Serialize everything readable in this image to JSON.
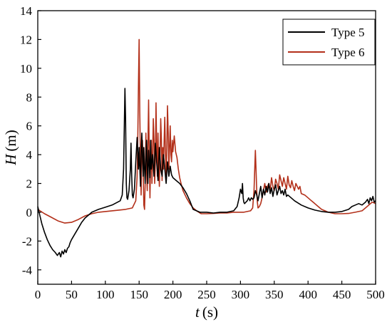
{
  "chart_data": {
    "type": "line",
    "title": "",
    "xlabel": "t (s)",
    "xlabel_var": "t",
    "xlabel_unit": "(s)",
    "ylabel": "H (m)",
    "ylabel_var": "H",
    "ylabel_unit": "(m)",
    "xlim": [
      0,
      500
    ],
    "ylim": [
      -5,
      14
    ],
    "xticks": [
      0,
      50,
      100,
      150,
      200,
      250,
      300,
      350,
      400,
      450,
      500
    ],
    "yticks": [
      -4,
      -2,
      0,
      2,
      4,
      6,
      8,
      10,
      12,
      14
    ],
    "grid": false,
    "legend_position": "top-right",
    "series": [
      {
        "name": "Type 5",
        "color": "#000000",
        "x": [
          0,
          3,
          6,
          10,
          14,
          18,
          22,
          26,
          29,
          32,
          34,
          36,
          38,
          40,
          42,
          44,
          46,
          48,
          50,
          55,
          60,
          65,
          70,
          75,
          80,
          90,
          100,
          110,
          118,
          122,
          125,
          127,
          129,
          130,
          131,
          132,
          133,
          135,
          137,
          138,
          139,
          140,
          141,
          143,
          145,
          147,
          149,
          150,
          151,
          152,
          153,
          154,
          155,
          156,
          157,
          158,
          159,
          160,
          161,
          162,
          163,
          164,
          165,
          166,
          167,
          168,
          170,
          172,
          174,
          176,
          178,
          180,
          182,
          184,
          186,
          188,
          190,
          192,
          194,
          196,
          198,
          200,
          205,
          210,
          215,
          220,
          225,
          230,
          240,
          250,
          260,
          270,
          280,
          290,
          295,
          298,
          300,
          302,
          303,
          304,
          305,
          306,
          308,
          310,
          312,
          314,
          316,
          318,
          320,
          322,
          324,
          326,
          328,
          330,
          332,
          334,
          336,
          338,
          340,
          342,
          344,
          346,
          348,
          350,
          352,
          354,
          356,
          358,
          360,
          362,
          364,
          366,
          368,
          370,
          375,
          380,
          390,
          400,
          410,
          420,
          430,
          440,
          450,
          460,
          465,
          470,
          475,
          480,
          485,
          488,
          490,
          492,
          494,
          496,
          498,
          500
        ],
        "y": [
          0.4,
          -0.2,
          -0.8,
          -1.4,
          -1.9,
          -2.3,
          -2.6,
          -2.8,
          -3.0,
          -2.8,
          -3.1,
          -2.7,
          -2.9,
          -2.6,
          -2.8,
          -2.5,
          -2.4,
          -2.1,
          -1.9,
          -1.5,
          -1.1,
          -0.7,
          -0.4,
          -0.2,
          0.0,
          0.2,
          0.35,
          0.5,
          0.7,
          0.8,
          1.2,
          3.0,
          8.6,
          6.5,
          2.0,
          1.0,
          0.9,
          1.5,
          3.0,
          4.8,
          2.5,
          1.2,
          1.0,
          1.6,
          3.5,
          5.2,
          3.0,
          4.5,
          3.2,
          1.8,
          4.0,
          5.5,
          4.0,
          2.5,
          4.5,
          3.0,
          2.0,
          3.8,
          5.0,
          3.0,
          2.0,
          4.3,
          3.5,
          2.4,
          5.0,
          3.0,
          4.0,
          2.5,
          4.8,
          3.5,
          2.2,
          4.5,
          3.0,
          2.5,
          4.0,
          3.0,
          2.0,
          3.5,
          2.5,
          3.2,
          2.6,
          2.4,
          2.2,
          2.0,
          1.7,
          1.3,
          0.8,
          0.2,
          0.0,
          0.0,
          -0.05,
          0.0,
          0.0,
          0.1,
          0.4,
          1.0,
          1.6,
          1.3,
          2.0,
          1.0,
          0.7,
          0.6,
          0.7,
          0.8,
          1.0,
          0.8,
          1.0,
          0.9,
          1.0,
          1.5,
          1.2,
          0.8,
          1.3,
          1.8,
          1.0,
          1.6,
          1.2,
          1.8,
          1.4,
          2.0,
          1.3,
          1.7,
          1.1,
          1.6,
          1.9,
          1.2,
          1.5,
          1.8,
          1.3,
          1.5,
          1.2,
          1.6,
          1.1,
          1.2,
          1.0,
          0.8,
          0.5,
          0.3,
          0.15,
          0.05,
          0.0,
          0.0,
          0.05,
          0.2,
          0.4,
          0.5,
          0.6,
          0.5,
          0.7,
          0.9,
          0.6,
          1.0,
          0.8,
          1.1,
          0.7,
          0.8
        ]
      },
      {
        "name": "Type 6",
        "color": "#b3301a",
        "x": [
          0,
          10,
          20,
          30,
          40,
          50,
          60,
          70,
          80,
          90,
          100,
          110,
          120,
          130,
          140,
          145,
          147,
          148,
          149,
          150,
          151,
          152,
          153,
          154,
          155,
          156,
          157,
          158,
          159,
          160,
          161,
          162,
          163,
          164,
          165,
          166,
          167,
          168,
          169,
          170,
          171,
          172,
          173,
          174,
          175,
          176,
          177,
          178,
          179,
          180,
          181,
          182,
          183,
          184,
          185,
          186,
          187,
          188,
          189,
          190,
          191,
          192,
          193,
          194,
          195,
          196,
          197,
          198,
          199,
          200,
          202,
          204,
          206,
          208,
          210,
          212,
          215,
          220,
          225,
          230,
          235,
          240,
          242,
          245,
          250,
          260,
          270,
          280,
          290,
          300,
          305,
          310,
          315,
          318,
          320,
          322,
          323,
          324,
          325,
          326,
          328,
          330,
          332,
          334,
          336,
          338,
          340,
          342,
          344,
          346,
          348,
          350,
          352,
          354,
          356,
          358,
          360,
          362,
          364,
          366,
          368,
          370,
          372,
          374,
          376,
          378,
          380,
          382,
          384,
          386,
          388,
          390,
          395,
          400,
          405,
          410,
          415,
          420,
          425,
          430,
          435,
          440,
          450,
          460,
          470,
          480,
          485,
          490,
          495,
          500
        ],
        "y": [
          0.2,
          -0.1,
          -0.35,
          -0.6,
          -0.75,
          -0.7,
          -0.5,
          -0.25,
          -0.1,
          0.0,
          0.05,
          0.1,
          0.15,
          0.2,
          0.3,
          0.8,
          2.5,
          5.0,
          9.0,
          12.0,
          7.0,
          3.5,
          1.2,
          4.5,
          5.0,
          3.0,
          0.5,
          0.2,
          2.0,
          5.5,
          3.0,
          1.5,
          4.5,
          7.8,
          4.0,
          1.0,
          3.5,
          5.0,
          2.0,
          4.0,
          6.5,
          5.0,
          2.0,
          3.5,
          7.6,
          4.5,
          2.5,
          5.5,
          3.0,
          1.8,
          4.0,
          6.5,
          5.0,
          2.2,
          4.5,
          3.0,
          5.0,
          6.6,
          4.0,
          2.5,
          4.5,
          7.4,
          5.5,
          3.0,
          4.6,
          6.0,
          4.0,
          3.5,
          5.0,
          4.2,
          5.3,
          4.2,
          3.8,
          3.0,
          2.4,
          2.0,
          1.5,
          1.0,
          0.6,
          0.3,
          0.1,
          -0.05,
          -0.1,
          -0.1,
          -0.1,
          -0.08,
          -0.05,
          -0.05,
          0.0,
          0.0,
          0.0,
          0.05,
          0.1,
          0.3,
          1.5,
          4.3,
          3.0,
          1.5,
          0.7,
          0.3,
          0.4,
          0.6,
          1.0,
          1.5,
          2.0,
          1.4,
          1.8,
          2.0,
          1.5,
          2.4,
          1.8,
          1.5,
          2.3,
          2.0,
          1.6,
          2.6,
          2.2,
          1.8,
          2.4,
          2.0,
          1.6,
          2.5,
          1.9,
          1.7,
          2.2,
          1.8,
          1.5,
          2.0,
          1.8,
          1.6,
          1.8,
          1.3,
          1.2,
          1.0,
          0.8,
          0.6,
          0.4,
          0.2,
          0.1,
          0.0,
          -0.05,
          -0.1,
          -0.1,
          -0.08,
          0.0,
          0.1,
          0.3,
          0.5,
          0.7,
          0.6
        ]
      }
    ]
  }
}
